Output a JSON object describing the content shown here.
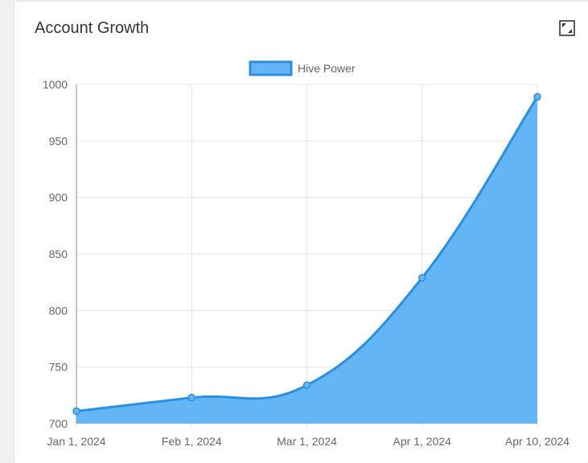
{
  "card": {
    "title": "Account Growth",
    "expand_icon": "expand-icon"
  },
  "chart_data": {
    "type": "area",
    "title": "",
    "xlabel": "",
    "ylabel": "",
    "x": [
      "Jan 1, 2024",
      "Feb 1, 2024",
      "Mar 1, 2024",
      "Apr 1, 2024",
      "Apr 10, 2024"
    ],
    "series": [
      {
        "name": "Hive Power",
        "values": [
          711,
          723,
          734,
          829,
          989
        ]
      }
    ],
    "ylim": [
      700,
      1000
    ],
    "yticks": [
      700,
      750,
      800,
      850,
      900,
      950,
      1000
    ],
    "grid": true,
    "legend": "top-center",
    "colors": {
      "line": "#2b8fde",
      "fill": "#64b5f6",
      "grid": "#e4e4e4",
      "axis": "#888888",
      "tick_text": "#666666"
    }
  }
}
